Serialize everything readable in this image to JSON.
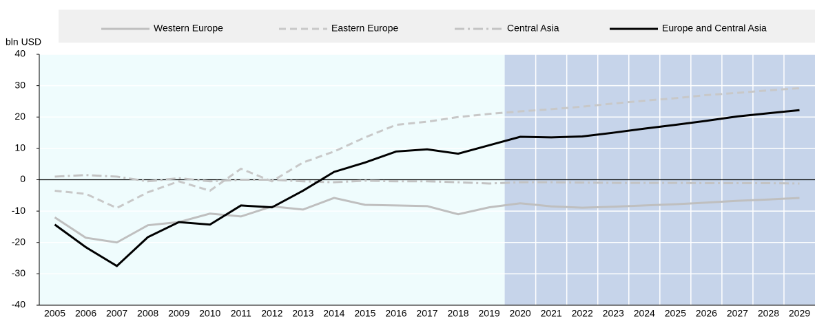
{
  "chart_data": {
    "type": "line",
    "y_label": "bln USD",
    "categories": [
      "2005",
      "2006",
      "2007",
      "2008",
      "2009",
      "2010",
      "2011",
      "2012",
      "2013",
      "2014",
      "2015",
      "2016",
      "2017",
      "2018",
      "2019",
      "2020",
      "2021",
      "2022",
      "2023",
      "2024",
      "2025",
      "2026",
      "2027",
      "2028",
      "2029"
    ],
    "series": [
      {
        "name": "Western Europe",
        "color": "#bfbfbf",
        "style": "solid",
        "values": [
          -12,
          -18.5,
          -20,
          -14.5,
          -13.5,
          -10.8,
          -11.7,
          -8.5,
          -9.5,
          -5.8,
          -8,
          -8.2,
          -8.4,
          -11,
          -8.8,
          -7.5,
          -8.5,
          -8.9,
          -8.6,
          -8.2,
          -7.8,
          -7.3,
          -6.7,
          -6.3,
          -5.8
        ]
      },
      {
        "name": "Eastern Europe",
        "color": "#c8c8c8",
        "style": "dashed",
        "values": [
          -3.5,
          -4.5,
          -9,
          -4,
          -0.5,
          -3.5,
          3.5,
          -0.5,
          5.5,
          9,
          13.5,
          17.5,
          18.5,
          20,
          21,
          21.8,
          22.5,
          23.3,
          24.3,
          25.2,
          26,
          27,
          27.7,
          28.5,
          29.2
        ]
      },
      {
        "name": "Central Asia",
        "color": "#c3c3c3",
        "style": "dashdot",
        "values": [
          1,
          1.5,
          1,
          -0.5,
          0.5,
          -0.5,
          0,
          0,
          -0.5,
          -0.8,
          -0.3,
          -0.5,
          -0.5,
          -0.8,
          -1.2,
          -0.8,
          -0.8,
          -0.9,
          -1,
          -1,
          -1,
          -1.1,
          -1.1,
          -1.1,
          -1.2
        ]
      },
      {
        "name": "Europe and Central Asia",
        "color": "#000000",
        "style": "solid",
        "values": [
          -14.3,
          -21.5,
          -27.5,
          -18.3,
          -13.5,
          -14.3,
          -8.2,
          -8.8,
          -3.5,
          2.5,
          5.5,
          9,
          9.7,
          8.3,
          11,
          13.7,
          13.5,
          13.8,
          15,
          16.3,
          17.5,
          18.8,
          20.2,
          21.2,
          22.2
        ]
      }
    ],
    "ylim": [
      -40,
      40
    ],
    "yticks": [
      -40,
      -30,
      -20,
      -10,
      0,
      10,
      20,
      30,
      40
    ],
    "grid": true,
    "history_color": "#effcfd",
    "projection_color": "#c6d4ea",
    "projection_start": 2020
  }
}
